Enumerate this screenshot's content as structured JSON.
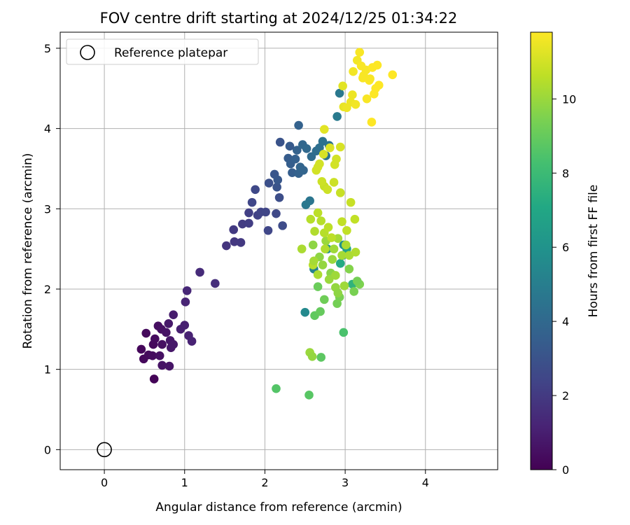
{
  "chart_data": {
    "type": "scatter",
    "title": "FOV centre drift starting at 2024/12/25 01:34:22",
    "xlabel": "Angular distance from reference (arcmin)",
    "ylabel": "Rotation from reference (arcmin)",
    "xlim": [
      -0.55,
      4.9
    ],
    "ylim": [
      -0.25,
      5.2
    ],
    "xticks": [
      0,
      1,
      2,
      3,
      4
    ],
    "yticks": [
      0,
      1,
      2,
      3,
      4,
      5
    ],
    "grid": true,
    "colormap": "viridis",
    "colorbar": {
      "label": "Hours from first FF file",
      "range": [
        0,
        11.8
      ],
      "ticks": [
        0,
        2,
        4,
        6,
        8,
        10
      ]
    },
    "legend": {
      "placement": "top-left",
      "entries": [
        "Reference platepar"
      ]
    },
    "reference_point": {
      "x": 0,
      "y": 0
    },
    "series": [
      {
        "points": [
          {
            "x": 0.62,
            "y": 0.88,
            "t": 0.1
          },
          {
            "x": 0.46,
            "y": 1.25,
            "t": 0.2
          },
          {
            "x": 0.49,
            "y": 1.13,
            "t": 0.25
          },
          {
            "x": 0.55,
            "y": 1.18,
            "t": 0.3
          },
          {
            "x": 0.61,
            "y": 1.31,
            "t": 0.3
          },
          {
            "x": 0.63,
            "y": 1.38,
            "t": 0.35
          },
          {
            "x": 0.52,
            "y": 1.45,
            "t": 0.3
          },
          {
            "x": 0.6,
            "y": 1.17,
            "t": 0.4
          },
          {
            "x": 0.67,
            "y": 1.54,
            "t": 0.45
          },
          {
            "x": 0.71,
            "y": 1.5,
            "t": 0.5
          },
          {
            "x": 0.72,
            "y": 1.31,
            "t": 0.5
          },
          {
            "x": 0.69,
            "y": 1.17,
            "t": 0.55
          },
          {
            "x": 0.72,
            "y": 1.05,
            "t": 0.6
          },
          {
            "x": 0.81,
            "y": 1.04,
            "t": 0.65
          },
          {
            "x": 0.77,
            "y": 1.46,
            "t": 0.6
          },
          {
            "x": 0.82,
            "y": 1.36,
            "t": 0.7
          },
          {
            "x": 0.83,
            "y": 1.27,
            "t": 0.75
          },
          {
            "x": 0.86,
            "y": 1.31,
            "t": 0.8
          },
          {
            "x": 0.8,
            "y": 1.57,
            "t": 0.8
          },
          {
            "x": 0.86,
            "y": 1.68,
            "t": 0.9
          },
          {
            "x": 0.95,
            "y": 1.5,
            "t": 1.0
          },
          {
            "x": 1.0,
            "y": 1.55,
            "t": 1.0
          },
          {
            "x": 1.05,
            "y": 1.42,
            "t": 1.1
          },
          {
            "x": 1.09,
            "y": 1.35,
            "t": 1.15
          },
          {
            "x": 1.01,
            "y": 1.84,
            "t": 1.2
          },
          {
            "x": 1.03,
            "y": 1.98,
            "t": 1.3
          },
          {
            "x": 1.19,
            "y": 2.21,
            "t": 1.45
          },
          {
            "x": 1.38,
            "y": 2.07,
            "t": 1.6
          },
          {
            "x": 1.52,
            "y": 2.54,
            "t": 1.8
          },
          {
            "x": 1.62,
            "y": 2.59,
            "t": 1.9
          },
          {
            "x": 1.7,
            "y": 2.58,
            "t": 1.95
          },
          {
            "x": 1.61,
            "y": 2.74,
            "t": 2.0
          },
          {
            "x": 1.72,
            "y": 2.81,
            "t": 2.1
          },
          {
            "x": 1.8,
            "y": 2.82,
            "t": 2.15
          },
          {
            "x": 1.8,
            "y": 2.95,
            "t": 2.2
          },
          {
            "x": 1.91,
            "y": 2.92,
            "t": 2.3
          },
          {
            "x": 1.95,
            "y": 2.96,
            "t": 2.4
          },
          {
            "x": 2.01,
            "y": 2.96,
            "t": 2.45
          },
          {
            "x": 1.84,
            "y": 3.08,
            "t": 2.5
          },
          {
            "x": 2.04,
            "y": 2.73,
            "t": 2.5
          },
          {
            "x": 2.14,
            "y": 2.94,
            "t": 2.6
          },
          {
            "x": 2.22,
            "y": 2.79,
            "t": 2.7
          },
          {
            "x": 1.88,
            "y": 3.24,
            "t": 2.6
          },
          {
            "x": 2.18,
            "y": 3.14,
            "t": 2.8
          },
          {
            "x": 2.05,
            "y": 3.32,
            "t": 2.9
          },
          {
            "x": 2.15,
            "y": 3.27,
            "t": 3.0
          },
          {
            "x": 2.12,
            "y": 3.43,
            "t": 3.1
          },
          {
            "x": 2.16,
            "y": 3.36,
            "t": 3.2
          },
          {
            "x": 2.29,
            "y": 3.63,
            "t": 3.4
          },
          {
            "x": 2.34,
            "y": 3.45,
            "t": 3.5
          },
          {
            "x": 2.32,
            "y": 3.56,
            "t": 3.5
          },
          {
            "x": 2.38,
            "y": 3.62,
            "t": 3.6
          },
          {
            "x": 2.42,
            "y": 3.44,
            "t": 3.7
          },
          {
            "x": 2.44,
            "y": 3.52,
            "t": 3.8
          },
          {
            "x": 2.48,
            "y": 3.48,
            "t": 3.8
          },
          {
            "x": 2.4,
            "y": 3.73,
            "t": 3.7
          },
          {
            "x": 2.47,
            "y": 3.8,
            "t": 3.9
          },
          {
            "x": 2.52,
            "y": 3.75,
            "t": 4.0
          },
          {
            "x": 2.58,
            "y": 3.65,
            "t": 4.1
          },
          {
            "x": 2.31,
            "y": 3.78,
            "t": 3.3
          },
          {
            "x": 2.19,
            "y": 3.83,
            "t": 3.0
          },
          {
            "x": 2.42,
            "y": 4.04,
            "t": 3.7
          },
          {
            "x": 2.64,
            "y": 3.72,
            "t": 4.2
          },
          {
            "x": 2.68,
            "y": 3.76,
            "t": 4.3
          },
          {
            "x": 2.72,
            "y": 3.84,
            "t": 4.4
          },
          {
            "x": 2.76,
            "y": 3.66,
            "t": 4.5
          },
          {
            "x": 2.8,
            "y": 3.79,
            "t": 4.5
          },
          {
            "x": 2.56,
            "y": 3.1,
            "t": 4.6
          },
          {
            "x": 2.51,
            "y": 3.05,
            "t": 4.7
          },
          {
            "x": 2.9,
            "y": 4.15,
            "t": 4.8
          },
          {
            "x": 2.93,
            "y": 4.44,
            "t": 4.7
          },
          {
            "x": 2.61,
            "y": 2.25,
            "t": 5.2
          },
          {
            "x": 2.5,
            "y": 1.71,
            "t": 5.5
          },
          {
            "x": 2.78,
            "y": 2.5,
            "t": 5.8
          },
          {
            "x": 2.98,
            "y": 2.55,
            "t": 5.9
          },
          {
            "x": 2.97,
            "y": 2.42,
            "t": 6.3
          },
          {
            "x": 3.02,
            "y": 2.5,
            "t": 6.8
          },
          {
            "x": 2.94,
            "y": 2.32,
            "t": 7.2
          },
          {
            "x": 3.09,
            "y": 2.06,
            "t": 7.6
          },
          {
            "x": 2.98,
            "y": 1.46,
            "t": 8.4
          },
          {
            "x": 2.14,
            "y": 0.76,
            "t": 8.6
          },
          {
            "x": 2.55,
            "y": 0.68,
            "t": 8.7
          },
          {
            "x": 2.7,
            "y": 1.15,
            "t": 8.8
          },
          {
            "x": 2.62,
            "y": 1.67,
            "t": 8.9
          },
          {
            "x": 2.69,
            "y": 1.72,
            "t": 9.0
          },
          {
            "x": 2.66,
            "y": 2.03,
            "t": 9.1
          },
          {
            "x": 2.74,
            "y": 1.87,
            "t": 9.2
          },
          {
            "x": 2.9,
            "y": 1.82,
            "t": 9.3
          },
          {
            "x": 2.93,
            "y": 1.9,
            "t": 9.4
          },
          {
            "x": 3.11,
            "y": 1.97,
            "t": 9.4
          },
          {
            "x": 3.18,
            "y": 2.06,
            "t": 9.5
          },
          {
            "x": 3.15,
            "y": 2.1,
            "t": 9.3
          },
          {
            "x": 3.05,
            "y": 2.25,
            "t": 9.6
          },
          {
            "x": 2.82,
            "y": 2.2,
            "t": 9.7
          },
          {
            "x": 2.6,
            "y": 2.55,
            "t": 9.8
          },
          {
            "x": 2.68,
            "y": 2.4,
            "t": 9.8
          },
          {
            "x": 2.72,
            "y": 2.3,
            "t": 9.9
          },
          {
            "x": 2.76,
            "y": 2.6,
            "t": 10.0
          },
          {
            "x": 2.84,
            "y": 2.37,
            "t": 10.0
          },
          {
            "x": 2.88,
            "y": 2.17,
            "t": 10.1
          },
          {
            "x": 2.86,
            "y": 2.5,
            "t": 10.1
          },
          {
            "x": 2.91,
            "y": 2.63,
            "t": 10.2
          },
          {
            "x": 2.96,
            "y": 2.42,
            "t": 10.2
          },
          {
            "x": 3.01,
            "y": 2.55,
            "t": 10.3
          },
          {
            "x": 3.05,
            "y": 2.42,
            "t": 10.3
          },
          {
            "x": 3.13,
            "y": 2.46,
            "t": 10.4
          },
          {
            "x": 2.62,
            "y": 2.72,
            "t": 10.4
          },
          {
            "x": 2.7,
            "y": 2.85,
            "t": 10.5
          },
          {
            "x": 2.74,
            "y": 2.7,
            "t": 10.5
          },
          {
            "x": 2.79,
            "y": 2.77,
            "t": 10.6
          },
          {
            "x": 2.83,
            "y": 2.64,
            "t": 10.6
          },
          {
            "x": 2.66,
            "y": 2.95,
            "t": 10.6
          },
          {
            "x": 2.96,
            "y": 2.84,
            "t": 10.7
          },
          {
            "x": 3.02,
            "y": 2.73,
            "t": 10.7
          },
          {
            "x": 3.12,
            "y": 2.87,
            "t": 10.7
          },
          {
            "x": 2.94,
            "y": 3.2,
            "t": 10.8
          },
          {
            "x": 3.07,
            "y": 3.08,
            "t": 10.8
          },
          {
            "x": 2.74,
            "y": 3.28,
            "t": 10.8
          },
          {
            "x": 2.78,
            "y": 3.24,
            "t": 10.9
          },
          {
            "x": 2.71,
            "y": 3.34,
            "t": 10.9
          },
          {
            "x": 2.86,
            "y": 3.33,
            "t": 10.9
          },
          {
            "x": 2.64,
            "y": 3.48,
            "t": 11.0
          },
          {
            "x": 2.66,
            "y": 3.52,
            "t": 11.0
          },
          {
            "x": 2.68,
            "y": 3.56,
            "t": 11.0
          },
          {
            "x": 2.73,
            "y": 3.68,
            "t": 11.1
          },
          {
            "x": 2.89,
            "y": 3.62,
            "t": 11.0
          },
          {
            "x": 2.87,
            "y": 3.55,
            "t": 11.0
          },
          {
            "x": 2.94,
            "y": 3.77,
            "t": 11.1
          },
          {
            "x": 2.81,
            "y": 3.76,
            "t": 11.2
          },
          {
            "x": 2.74,
            "y": 3.99,
            "t": 11.3
          },
          {
            "x": 2.6,
            "y": 2.3,
            "t": 10.5
          },
          {
            "x": 2.46,
            "y": 2.5,
            "t": 10.3
          },
          {
            "x": 2.56,
            "y": 1.21,
            "t": 10.0
          },
          {
            "x": 2.59,
            "y": 1.16,
            "t": 9.9
          },
          {
            "x": 2.57,
            "y": 2.87,
            "t": 10.5
          },
          {
            "x": 2.61,
            "y": 2.35,
            "t": 10.2
          },
          {
            "x": 2.8,
            "y": 2.12,
            "t": 10.0
          },
          {
            "x": 2.88,
            "y": 2.02,
            "t": 9.9
          },
          {
            "x": 2.91,
            "y": 1.95,
            "t": 9.8
          },
          {
            "x": 2.75,
            "y": 2.5,
            "t": 10.4
          },
          {
            "x": 2.99,
            "y": 2.04,
            "t": 10.1
          },
          {
            "x": 2.66,
            "y": 2.18,
            "t": 10.3
          },
          {
            "x": 2.98,
            "y": 4.27,
            "t": 11.4
          },
          {
            "x": 2.97,
            "y": 4.53,
            "t": 11.3
          },
          {
            "x": 3.02,
            "y": 4.26,
            "t": 11.5
          },
          {
            "x": 3.07,
            "y": 4.33,
            "t": 11.5
          },
          {
            "x": 3.09,
            "y": 4.42,
            "t": 11.5
          },
          {
            "x": 3.13,
            "y": 4.3,
            "t": 11.6
          },
          {
            "x": 3.1,
            "y": 4.71,
            "t": 11.6
          },
          {
            "x": 3.15,
            "y": 4.85,
            "t": 11.6
          },
          {
            "x": 3.18,
            "y": 4.95,
            "t": 11.7
          },
          {
            "x": 3.2,
            "y": 4.78,
            "t": 11.7
          },
          {
            "x": 3.22,
            "y": 4.63,
            "t": 11.7
          },
          {
            "x": 3.26,
            "y": 4.73,
            "t": 11.7
          },
          {
            "x": 3.27,
            "y": 4.37,
            "t": 11.7
          },
          {
            "x": 3.3,
            "y": 4.6,
            "t": 11.8
          },
          {
            "x": 3.33,
            "y": 4.08,
            "t": 11.8
          },
          {
            "x": 3.34,
            "y": 4.76,
            "t": 11.8
          },
          {
            "x": 3.36,
            "y": 4.43,
            "t": 11.8
          },
          {
            "x": 3.38,
            "y": 4.5,
            "t": 11.8
          },
          {
            "x": 3.4,
            "y": 4.79,
            "t": 11.8
          },
          {
            "x": 3.42,
            "y": 4.54,
            "t": 11.8
          },
          {
            "x": 3.59,
            "y": 4.67,
            "t": 11.8
          },
          {
            "x": 3.23,
            "y": 4.66,
            "t": 11.7
          },
          {
            "x": 3.31,
            "y": 4.62,
            "t": 11.7
          }
        ]
      }
    ]
  }
}
